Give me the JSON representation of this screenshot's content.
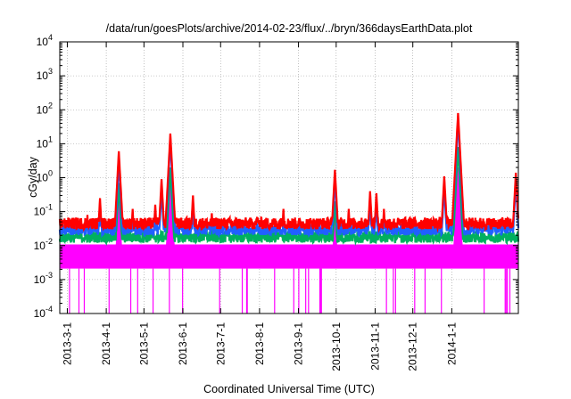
{
  "chart_data": {
    "type": "line",
    "title": "/data/run/goesPlots/archive/2014-02-23/flux/../bryn/366daysEarthData.plot",
    "xlabel": "Coordinated Universal Time (UTC)",
    "ylabel": "cGy/day",
    "y_scale": "log",
    "ylim": [
      0.0001,
      10000
    ],
    "xlim": [
      "2013-02-23",
      "2014-02-23"
    ],
    "grid": true,
    "y_tick_labels": [
      "10-4",
      "10-3",
      "10-2",
      "10-1",
      "100",
      "101",
      "102",
      "103",
      "104"
    ],
    "x_ticks": [
      {
        "date": "2013-03-01",
        "label": "2013-3-1"
      },
      {
        "date": "2013-04-01",
        "label": "2013-4-1"
      },
      {
        "date": "2013-05-01",
        "label": "2013-5-1"
      },
      {
        "date": "2013-06-01",
        "label": "2013-6-1"
      },
      {
        "date": "2013-07-01",
        "label": "2013-7-1"
      },
      {
        "date": "2013-08-01",
        "label": "2013-8-1"
      },
      {
        "date": "2013-09-01",
        "label": "2013-9-1"
      },
      {
        "date": "2013-10-01",
        "label": "2013-10-1"
      },
      {
        "date": "2013-11-01",
        "label": "2013-11-1"
      },
      {
        "date": "2013-12-01",
        "label": "2013-12-1"
      },
      {
        "date": "2014-01-01",
        "label": "2014-1-1"
      }
    ],
    "series": [
      {
        "color": "#ff0000",
        "baseline": 0.045,
        "peaks": [
          [
            "2013-03-17",
            0.08
          ],
          [
            "2013-03-27",
            0.25
          ],
          [
            "2013-04-11",
            6
          ],
          [
            "2013-04-22",
            0.12
          ],
          [
            "2013-05-10",
            0.16
          ],
          [
            "2013-05-15",
            0.9
          ],
          [
            "2013-05-22",
            20
          ],
          [
            "2013-06-09",
            0.3
          ],
          [
            "2013-06-24",
            0.09
          ],
          [
            "2013-07-30",
            0.07
          ],
          [
            "2013-08-20",
            0.12
          ],
          [
            "2013-09-30",
            1.7
          ],
          [
            "2013-10-11",
            0.12
          ],
          [
            "2013-10-28",
            0.4
          ],
          [
            "2013-11-02",
            0.35
          ],
          [
            "2013-11-08",
            0.12
          ],
          [
            "2013-12-26",
            1.1
          ],
          [
            "2014-01-06",
            80
          ],
          [
            "2014-02-21",
            1.4
          ]
        ]
      },
      {
        "color": "#2060ff",
        "baseline": 0.03,
        "peaks": [
          [
            "2013-03-17",
            0.05
          ],
          [
            "2013-03-27",
            0.12
          ],
          [
            "2013-04-11",
            3
          ],
          [
            "2013-04-22",
            0.07
          ],
          [
            "2013-05-10",
            0.09
          ],
          [
            "2013-05-15",
            0.45
          ],
          [
            "2013-05-22",
            12
          ],
          [
            "2013-06-09",
            0.15
          ],
          [
            "2013-06-24",
            0.05
          ],
          [
            "2013-07-30",
            0.045
          ],
          [
            "2013-08-20",
            0.07
          ],
          [
            "2013-09-30",
            0.9
          ],
          [
            "2013-10-11",
            0.07
          ],
          [
            "2013-10-28",
            0.2
          ],
          [
            "2013-11-02",
            0.18
          ],
          [
            "2013-11-08",
            0.07
          ],
          [
            "2013-12-26",
            0.55
          ],
          [
            "2014-01-06",
            45
          ],
          [
            "2014-02-21",
            0.8
          ]
        ]
      },
      {
        "color": "#00b060",
        "baseline": 0.018,
        "peaks": [
          [
            "2013-04-11",
            0.7
          ],
          [
            "2013-05-22",
            2
          ],
          [
            "2013-09-30",
            0.2
          ],
          [
            "2014-01-06",
            8
          ]
        ]
      },
      {
        "color": "#ff00ff",
        "baseline": 0.006,
        "floor": 0.0001,
        "peaks": [
          [
            "2013-04-11",
            0.3
          ],
          [
            "2013-05-22",
            1.5
          ],
          [
            "2013-09-30",
            0.1
          ],
          [
            "2014-01-06",
            2
          ]
        ]
      }
    ]
  }
}
